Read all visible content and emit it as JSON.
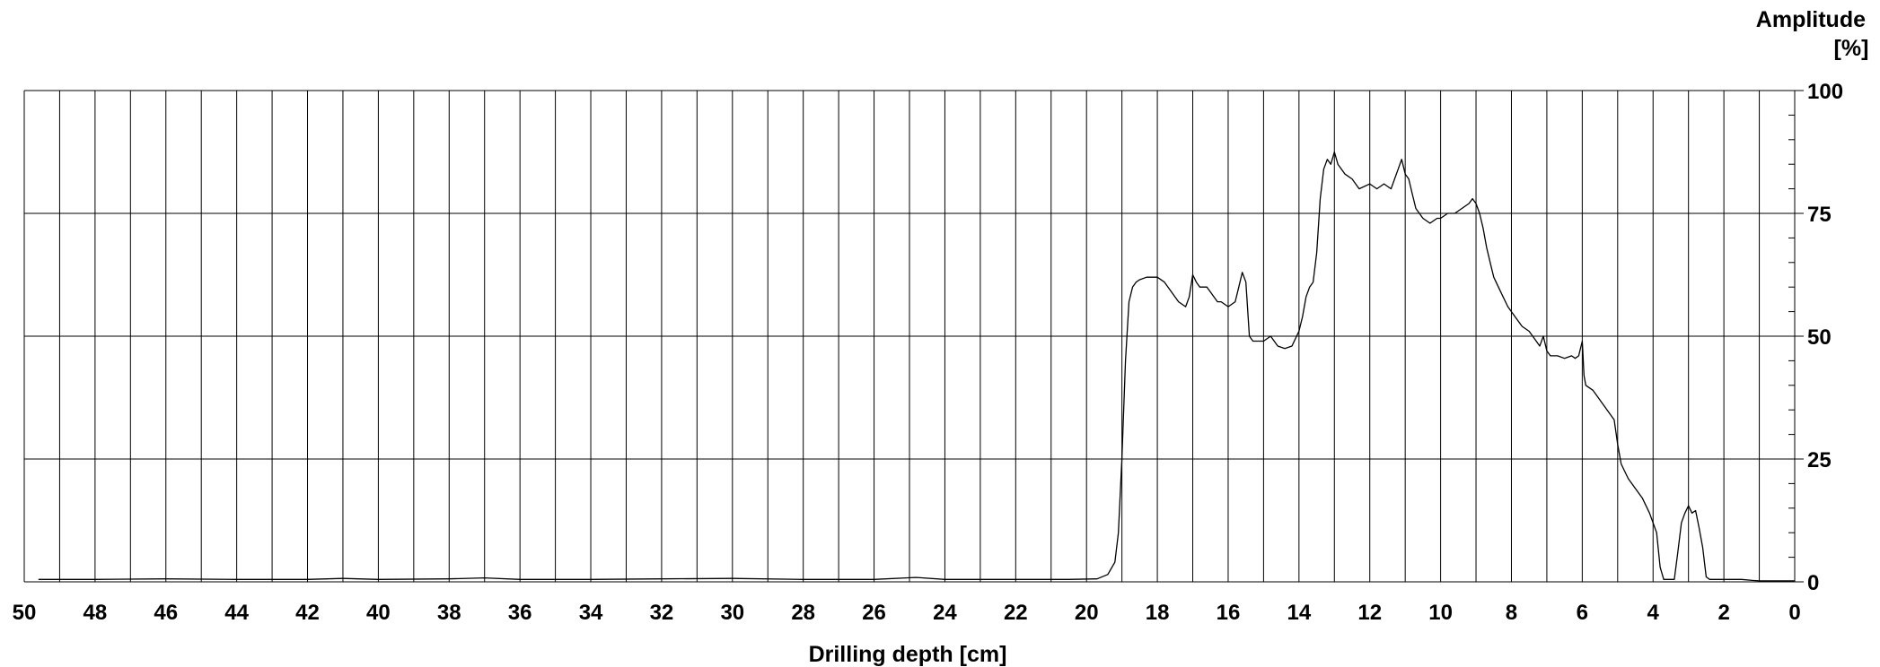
{
  "chart_data": {
    "type": "line",
    "title": "",
    "xlabel": "Drilling depth [cm]",
    "ylabel_line1": "Amplitude",
    "ylabel_line2": "[%]",
    "xlim": [
      50,
      0
    ],
    "ylim": [
      0,
      100
    ],
    "x_ticks": [
      50,
      48,
      46,
      44,
      42,
      40,
      38,
      36,
      34,
      32,
      30,
      28,
      26,
      24,
      22,
      20,
      18,
      16,
      14,
      12,
      10,
      8,
      6,
      4,
      2,
      0
    ],
    "y_ticks": [
      0,
      25,
      50,
      75,
      100
    ],
    "grid": true,
    "line_color": "#000000",
    "series": [
      {
        "x": [
          49.6,
          49.0,
          48.0,
          46.0,
          44.0,
          42.0,
          41.0,
          40.0,
          38.0,
          37.0,
          36.0,
          34.0,
          32.0,
          30.0,
          28.0,
          26.0,
          24.8,
          24.0,
          22.0,
          20.5,
          19.7,
          19.4,
          19.2,
          19.1,
          19.0,
          18.9,
          18.8,
          18.7,
          18.6,
          18.5,
          18.3,
          18.0,
          17.8,
          17.6,
          17.4,
          17.2,
          17.1,
          17.0,
          16.9,
          16.8,
          16.6,
          16.4,
          16.3,
          16.2,
          16.0,
          15.8,
          15.7,
          15.6,
          15.5,
          15.4,
          15.3,
          15.0,
          14.8,
          14.6,
          14.4,
          14.2,
          14.0,
          13.9,
          13.8,
          13.7,
          13.6,
          13.5,
          13.4,
          13.3,
          13.2,
          13.1,
          13.0,
          12.9,
          12.7,
          12.5,
          12.3,
          12.0,
          11.8,
          11.6,
          11.4,
          11.2,
          11.1,
          11.0,
          10.9,
          10.8,
          10.7,
          10.5,
          10.3,
          10.1,
          10.0,
          9.8,
          9.6,
          9.4,
          9.2,
          9.1,
          9.0,
          8.9,
          8.8,
          8.7,
          8.6,
          8.5,
          8.3,
          8.1,
          7.9,
          7.7,
          7.5,
          7.3,
          7.2,
          7.1,
          7.0,
          6.9,
          6.7,
          6.5,
          6.3,
          6.2,
          6.1,
          6.0,
          5.95,
          5.9,
          5.7,
          5.5,
          5.3,
          5.1,
          5.0,
          4.9,
          4.7,
          4.5,
          4.3,
          4.1,
          3.9,
          3.8,
          3.7,
          3.6,
          3.4,
          3.3,
          3.2,
          3.1,
          3.0,
          2.9,
          2.8,
          2.7,
          2.6,
          2.5,
          2.4,
          2.2,
          2.0,
          1.5,
          1.2,
          1.0,
          0.5,
          0.0
        ],
        "y": [
          0.5,
          0.5,
          0.5,
          0.6,
          0.5,
          0.5,
          0.7,
          0.5,
          0.6,
          0.8,
          0.5,
          0.5,
          0.6,
          0.7,
          0.5,
          0.5,
          0.9,
          0.5,
          0.5,
          0.5,
          0.6,
          1.5,
          4.0,
          10.0,
          25.0,
          45.0,
          57.0,
          60.0,
          61.0,
          61.5,
          62.0,
          62.0,
          61.0,
          59.0,
          57.0,
          56.0,
          58.0,
          62.5,
          61.0,
          60.0,
          60.0,
          58.0,
          57.0,
          57.0,
          56.0,
          57.0,
          60.0,
          63.0,
          61.0,
          50.0,
          49.0,
          49.0,
          50.0,
          48.0,
          47.5,
          48.0,
          51.0,
          54.0,
          58.0,
          60.0,
          61.0,
          67.0,
          78.0,
          84.0,
          86.0,
          85.0,
          87.5,
          85.0,
          83.0,
          82.0,
          80.0,
          81.0,
          80.0,
          81.0,
          80.0,
          84.0,
          86.0,
          83.0,
          82.0,
          79.0,
          76.0,
          74.0,
          73.0,
          74.0,
          74.0,
          75.0,
          75.0,
          76.0,
          77.0,
          78.0,
          77.0,
          75.0,
          72.0,
          68.0,
          65.0,
          62.0,
          59.0,
          56.0,
          54.0,
          52.0,
          51.0,
          49.0,
          48.0,
          50.0,
          47.0,
          46.0,
          46.0,
          45.5,
          46.0,
          45.5,
          46.0,
          49.0,
          42.0,
          40.0,
          39.0,
          37.0,
          35.0,
          33.0,
          28.0,
          24.0,
          21.0,
          19.0,
          17.0,
          14.0,
          10.0,
          3.0,
          0.5,
          0.5,
          0.5,
          6.0,
          12.0,
          14.0,
          15.5,
          14.0,
          14.5,
          11.0,
          7.0,
          1.0,
          0.5,
          0.5,
          0.5,
          0.5,
          0.3,
          0.2,
          0.2,
          0.2
        ]
      }
    ]
  }
}
